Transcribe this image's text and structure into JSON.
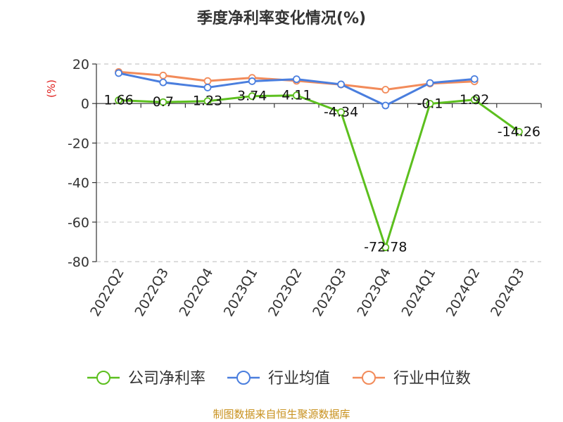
{
  "chart_data": {
    "type": "line",
    "title": "季度净利率变化情况(%)",
    "ylabel": "(%)",
    "categories": [
      "2022Q2",
      "2022Q3",
      "2022Q4",
      "2023Q1",
      "2023Q2",
      "2023Q3",
      "2023Q4",
      "2024Q1",
      "2024Q2",
      "2024Q3"
    ],
    "ylim": [
      -80,
      20
    ],
    "yticks": [
      20,
      0,
      -20,
      -40,
      -60,
      -80
    ],
    "grid": true,
    "legend_position": "bottom",
    "series": [
      {
        "name": "公司净利率",
        "color": "#5cbf1e",
        "values": [
          1.66,
          0.7,
          1.23,
          3.74,
          4.11,
          -4.34,
          -72.78,
          -0.1,
          1.92,
          -14.26
        ],
        "labels": [
          "1.66",
          "0.7",
          "1.23",
          "3.74",
          "4.11",
          "-4.34",
          "-72.78",
          "-0.1",
          "1.92",
          "-14.26"
        ]
      },
      {
        "name": "行业均值",
        "color": "#4a7ede",
        "values": [
          15.4,
          10.7,
          8.1,
          11.3,
          12.3,
          9.7,
          -1.0,
          10.4,
          12.4,
          null
        ]
      },
      {
        "name": "行业中位数",
        "color": "#f28b5a",
        "values": [
          16.0,
          14.2,
          11.4,
          13.0,
          11.5,
          9.6,
          7.0,
          10.1,
          11.2,
          null
        ]
      }
    ]
  },
  "source": "制图数据来自恒生聚源数据库"
}
